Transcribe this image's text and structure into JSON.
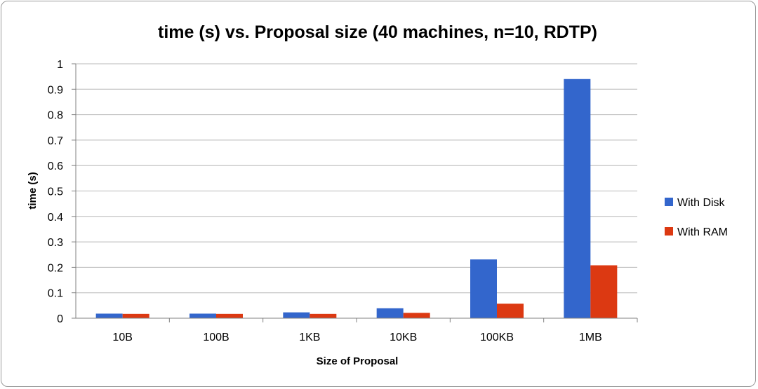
{
  "chart_data": {
    "type": "bar",
    "title": "time (s) vs. Proposal size (40 machines, n=10, RDTP)",
    "xlabel": "Size of Proposal",
    "ylabel": "time (s)",
    "categories": [
      "10B",
      "100B",
      "1KB",
      "10KB",
      "100KB",
      "1MB"
    ],
    "ylim": [
      0,
      1
    ],
    "yticks": [
      "0",
      "0.1",
      "0.2",
      "0.3",
      "0.4",
      "0.5",
      "0.6",
      "0.7",
      "0.8",
      "0.9",
      "1"
    ],
    "grid": true,
    "legend_position": "right",
    "series": [
      {
        "name": "With Disk",
        "color": "#3366cc",
        "values": [
          0.018,
          0.018,
          0.023,
          0.039,
          0.231,
          0.94
        ]
      },
      {
        "name": "With RAM",
        "color": "#dc3912",
        "values": [
          0.017,
          0.017,
          0.017,
          0.021,
          0.057,
          0.208
        ]
      }
    ]
  }
}
